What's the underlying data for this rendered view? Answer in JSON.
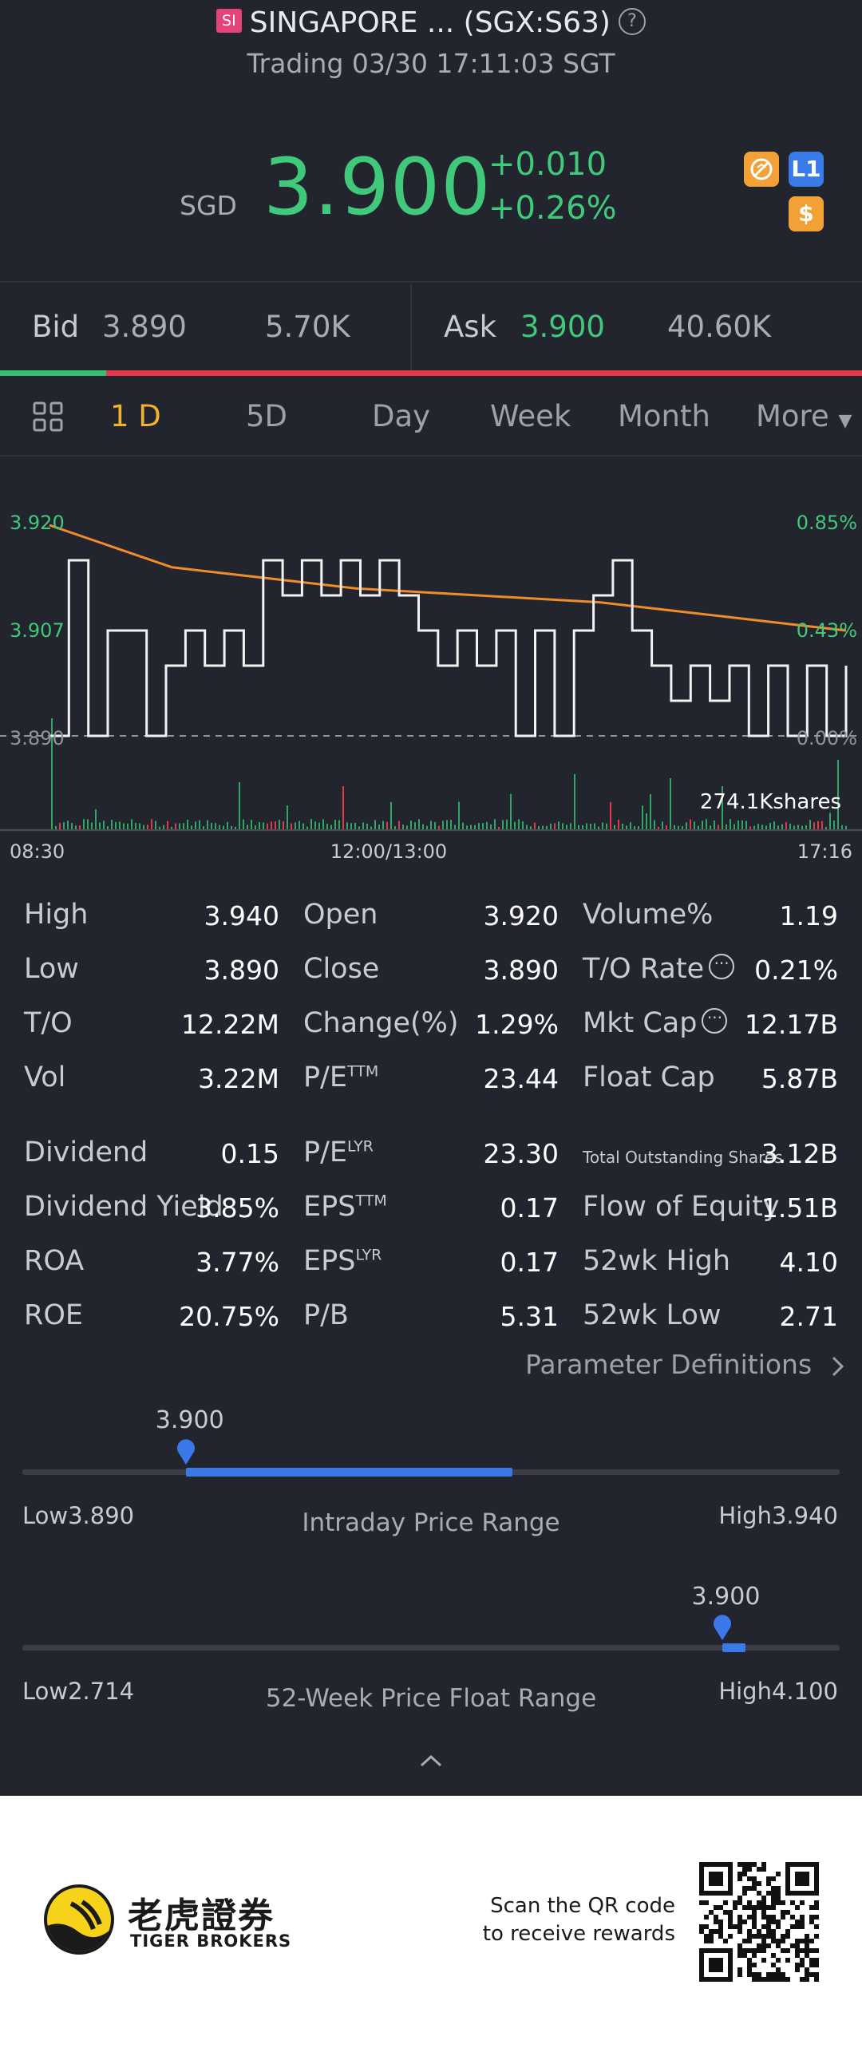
{
  "header": {
    "exchange_badge": "SI",
    "title": "SINGAPORE ... (SGX:S63)",
    "help_glyph": "?",
    "status": "Trading 03/30 17:11:03 SGT"
  },
  "quote": {
    "currency": "SGD",
    "price": "3.900",
    "change": "+0.010",
    "change_pct": "+0.26%",
    "badges": {
      "l1": "L1",
      "dollar": "$"
    },
    "colors": {
      "up": "#40c97a",
      "brand_accent": "#f1b230"
    }
  },
  "bid_ask": {
    "bid_label": "Bid",
    "bid_price": "3.890",
    "bid_size": "5.70K",
    "ask_label": "Ask",
    "ask_price": "3.900",
    "ask_size": "40.60K",
    "bid_share": 0.123
  },
  "tabs": {
    "active": "1 D",
    "items": [
      "1 D",
      "5D",
      "Day",
      "Week",
      "Month",
      "More"
    ]
  },
  "chart": {
    "y_left_top": "3.920",
    "y_left_mid": "3.907",
    "y_left_base": "3.890",
    "y_right_top": "0.85%",
    "y_right_mid": "0.43%",
    "y_right_base": "0.00%",
    "volume_label": "274.1Kshares",
    "x_start": "08:30",
    "x_mid": "12:00/13:00",
    "x_end": "17:16"
  },
  "chart_data": {
    "type": "line",
    "x_labels": [
      "08:30",
      "12:00/13:00",
      "17:16"
    ],
    "y_ticks_left": [
      "3.920",
      "3.907",
      "3.890"
    ],
    "y_ticks_right": [
      "0.85%",
      "0.43%",
      "0.00%"
    ],
    "series": [
      {
        "values": [
          3.89,
          3.915,
          3.89,
          3.905,
          3.905,
          3.89,
          3.9,
          3.905,
          3.9,
          3.905,
          3.9,
          3.915,
          3.91,
          3.915,
          3.91,
          3.915,
          3.91,
          3.915,
          3.91,
          3.905,
          3.9,
          3.905,
          3.9,
          3.905,
          3.89,
          3.905,
          3.89,
          3.905,
          3.91,
          3.915,
          3.905,
          3.9,
          3.895,
          3.9,
          3.895,
          3.9,
          3.89,
          3.9,
          3.89,
          3.9,
          3.89,
          3.9
        ]
      },
      {
        "values": [
          3.92,
          3.917,
          3.914,
          3.913,
          3.912,
          3.911,
          3.9105,
          3.91,
          3.9095,
          3.909,
          3.908,
          3.907,
          3.906,
          3.905
        ]
      }
    ],
    "volume_total": "274.1Kshares"
  },
  "stats": {
    "col1": [
      {
        "label": "High",
        "value": "3.940"
      },
      {
        "label": "Low",
        "value": "3.890"
      },
      {
        "label": "T/O",
        "value": "12.22M"
      },
      {
        "label": "Vol",
        "value": "3.22M"
      },
      {
        "label": "Dividend",
        "value": "0.15"
      },
      {
        "label": "Dividend Yield",
        "value": "3.85%"
      },
      {
        "label": "ROA",
        "value": "3.77%"
      },
      {
        "label": "ROE",
        "value": "20.75%"
      }
    ],
    "col2": [
      {
        "label": "Open",
        "sup": "",
        "value": "3.920"
      },
      {
        "label": "Close",
        "sup": "",
        "value": "3.890"
      },
      {
        "label": "Change(%)",
        "sup": "",
        "value": "1.29%"
      },
      {
        "label": "P/E",
        "sup": "TTM",
        "value": "23.44"
      },
      {
        "label": "P/E",
        "sup": "LYR",
        "value": "23.30"
      },
      {
        "label": "EPS",
        "sup": "TTM",
        "value": "0.17"
      },
      {
        "label": "EPS",
        "sup": "LYR",
        "value": "0.17"
      },
      {
        "label": "P/B",
        "sup": "",
        "value": "5.31"
      }
    ],
    "col3": [
      {
        "label": "Volume%",
        "value": "1.19"
      },
      {
        "label": "T/O Rate",
        "value": "0.21%"
      },
      {
        "label": "Mkt Cap",
        "value": "12.17B"
      },
      {
        "label": "Float Cap",
        "value": "5.87B"
      },
      {
        "label": "Total Outstanding Shares",
        "value": "3.12B"
      },
      {
        "label": "Flow of Equity",
        "value": "1.51B"
      },
      {
        "label": "52wk High",
        "value": "4.10"
      },
      {
        "label": "52wk Low",
        "value": "2.71"
      }
    ],
    "info_glyph": "···",
    "param_link": "Parameter Definitions"
  },
  "intraday_range": {
    "current": "3.900",
    "low": "Low3.890",
    "high": "High3.940",
    "title": "Intraday Price Range",
    "position": 0.2,
    "range_end": 0.6
  },
  "week52_range": {
    "current": "3.900",
    "low": "Low2.714",
    "high": "High4.100",
    "title": "52-Week Price Float Range",
    "position": 0.856,
    "range_end": 0.885
  },
  "footer": {
    "brand_cn": "老虎證券",
    "brand_en": "TIGER BROKERS",
    "scan_line1": "Scan the QR code",
    "scan_line2": "to receive rewards"
  }
}
